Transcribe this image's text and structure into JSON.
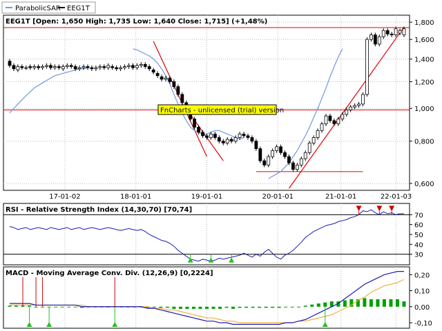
{
  "legend": {
    "items": [
      {
        "name": "ParabolicSAR",
        "color": "#6f98e0"
      },
      {
        "name": "EEG1T",
        "color": "#000000"
      }
    ]
  },
  "watermark": "FnCharts - unlicensed (trial) version",
  "colors": {
    "price_up": "#ffffff",
    "price_down": "#000000",
    "sar": "#6f98e0",
    "trend": "#e00000",
    "rsi": "#1a1ab4",
    "macd": "#1a1ab4",
    "signal": "#f0b040",
    "hist": "#00a000",
    "arrow_up": "#22c022",
    "arrow_down": "#cc0000"
  },
  "chart_data": [
    {
      "type": "candlestick",
      "title": "EEG1T [Open: 1,650  High: 1,735  Low: 1,640  Close: 1,715] (+1,48%)",
      "xticks": [
        "17-01-02",
        "18-01-01",
        "19-01-01",
        "20-01-01",
        "21-01-01",
        "22-01-03"
      ],
      "yticks": [
        "0,600",
        "0,800",
        "1,000",
        "1,200",
        "1,400",
        "1,600",
        "1,800"
      ],
      "ylim": [
        0.575,
        1.87
      ],
      "yscale": "log",
      "closes": [
        1.34,
        1.31,
        1.33,
        1.32,
        1.32,
        1.32,
        1.33,
        1.32,
        1.33,
        1.34,
        1.32,
        1.33,
        1.32,
        1.33,
        1.34,
        1.33,
        1.31,
        1.32,
        1.33,
        1.32,
        1.31,
        1.32,
        1.33,
        1.32,
        1.34,
        1.32,
        1.31,
        1.32,
        1.33,
        1.34,
        1.32,
        1.34,
        1.35,
        1.33,
        1.31,
        1.28,
        1.25,
        1.22,
        1.23,
        1.2,
        1.16,
        1.1,
        1.04,
        0.98,
        0.93,
        0.88,
        0.85,
        0.83,
        0.82,
        0.84,
        0.82,
        0.8,
        0.79,
        0.81,
        0.8,
        0.82,
        0.84,
        0.83,
        0.82,
        0.8,
        0.76,
        0.7,
        0.68,
        0.72,
        0.75,
        0.77,
        0.74,
        0.72,
        0.69,
        0.66,
        0.68,
        0.71,
        0.74,
        0.79,
        0.82,
        0.86,
        0.9,
        0.95,
        0.92,
        0.9,
        0.93,
        0.96,
        0.99,
        1.01,
        1.02,
        1.03,
        1.1,
        1.6,
        1.65,
        1.55,
        1.63,
        1.7,
        1.66,
        1.65,
        1.72,
        1.7,
        1.72
      ],
      "opens": [
        1.38,
        1.34,
        1.3,
        1.33,
        1.32,
        1.33,
        1.32,
        1.33,
        1.32,
        1.33,
        1.34,
        1.32,
        1.33,
        1.31,
        1.33,
        1.34,
        1.33,
        1.31,
        1.32,
        1.33,
        1.32,
        1.31,
        1.32,
        1.33,
        1.32,
        1.33,
        1.32,
        1.31,
        1.32,
        1.33,
        1.34,
        1.32,
        1.34,
        1.35,
        1.33,
        1.3,
        1.27,
        1.24,
        1.22,
        1.23,
        1.2,
        1.16,
        1.1,
        1.04,
        0.98,
        0.93,
        0.88,
        0.85,
        0.83,
        0.82,
        0.84,
        0.82,
        0.8,
        0.79,
        0.81,
        0.8,
        0.82,
        0.84,
        0.83,
        0.82,
        0.8,
        0.76,
        0.7,
        0.68,
        0.72,
        0.75,
        0.77,
        0.74,
        0.72,
        0.69,
        0.66,
        0.68,
        0.71,
        0.74,
        0.79,
        0.82,
        0.86,
        0.9,
        0.95,
        0.92,
        0.9,
        0.93,
        0.96,
        0.99,
        1.01,
        1.02,
        1.03,
        1.1,
        1.6,
        1.65,
        1.55,
        1.63,
        1.7,
        1.66,
        1.65,
        1.67,
        1.65
      ],
      "sar": [
        0.97,
        1.0,
        1.03,
        1.06,
        1.09,
        1.12,
        1.15,
        1.17,
        1.19,
        1.21,
        1.23,
        1.25,
        1.26,
        1.27,
        1.28,
        1.29,
        1.3,
        1.31,
        1.31,
        1.32,
        null,
        null,
        null,
        null,
        null,
        null,
        null,
        null,
        null,
        null,
        1.5,
        1.49,
        1.47,
        1.45,
        1.43,
        1.4,
        1.36,
        1.31,
        1.25,
        1.18,
        1.1,
        1.03,
        0.97,
        0.92,
        0.88,
        0.86,
        0.85,
        0.84,
        0.84,
        0.85,
        0.86,
        0.86,
        0.85,
        0.84,
        0.83,
        0.82,
        0.81,
        0.82,
        null,
        null,
        null,
        null,
        null,
        0.62,
        0.63,
        0.64,
        0.65,
        0.67,
        0.69,
        0.72,
        0.75,
        0.79,
        0.83,
        0.88,
        0.94,
        1.0,
        1.07,
        1.15,
        1.24,
        1.33,
        1.42,
        1.5
      ],
      "hlines": [
        1.735,
        0.99,
        0.65
      ],
      "trendlines": [
        {
          "from": [
            35,
            1.58
          ],
          "to": [
            48,
            0.72
          ]
        },
        {
          "from": [
            44,
            0.96
          ],
          "to": [
            52,
            0.7
          ]
        },
        {
          "from": [
            68,
            0.58
          ],
          "to": [
            96,
            1.74
          ]
        }
      ]
    },
    {
      "type": "line",
      "title": "RSI - Relative Strength Index (14,30,70) [70,74]",
      "yticks": [
        "30",
        "40",
        "50",
        "60",
        "70"
      ],
      "ylim": [
        20,
        80
      ],
      "levels": [
        30,
        70
      ],
      "values": [
        58,
        57,
        55,
        56,
        57,
        55,
        56,
        57,
        56,
        55,
        57,
        56,
        55,
        56,
        57,
        55,
        56,
        57,
        55,
        56,
        57,
        56,
        55,
        56,
        57,
        56,
        55,
        54,
        55,
        56,
        55,
        54,
        55,
        53,
        50,
        48,
        46,
        44,
        43,
        41,
        38,
        34,
        31,
        28,
        25,
        24,
        23,
        25,
        24,
        23,
        24,
        26,
        25,
        26,
        27,
        28,
        29,
        31,
        29,
        27,
        30,
        28,
        32,
        35,
        31,
        27,
        25,
        29,
        31,
        34,
        38,
        42,
        47,
        50,
        53,
        55,
        57,
        59,
        60,
        61,
        63,
        64,
        65,
        67,
        68,
        70,
        74,
        73,
        75,
        72,
        70,
        73,
        71,
        72,
        70,
        71,
        71
      ],
      "markers_up": [
        44,
        49,
        54
      ],
      "markers_down": [
        85,
        90,
        93
      ]
    },
    {
      "type": "line",
      "title": "MACD - Moving Average Conv. Div. (12,26,9) [0,2224]",
      "yticks": [
        "-0,10",
        "0,00",
        "0,10",
        "0,20"
      ],
      "ylim": [
        -0.13,
        0.24
      ],
      "macd": [
        0.02,
        0.02,
        0.02,
        0.02,
        0.01,
        0.01,
        0.01,
        0.01,
        0.01,
        0.01,
        0.01,
        0.0,
        0.0,
        0.0,
        0.0,
        0.0,
        0.0,
        0.0,
        0.0,
        0.0,
        0.0,
        -0.01,
        -0.01,
        -0.02,
        -0.03,
        -0.04,
        -0.05,
        -0.06,
        -0.07,
        -0.08,
        -0.09,
        -0.09,
        -0.1,
        -0.1,
        -0.11,
        -0.11,
        -0.11,
        -0.11,
        -0.11,
        -0.11,
        -0.11,
        -0.11,
        -0.1,
        -0.1,
        -0.09,
        -0.08,
        -0.06,
        -0.04,
        -0.02,
        0.0,
        0.02,
        0.05,
        0.08,
        0.11,
        0.14,
        0.16,
        0.18,
        0.2,
        0.21,
        0.22,
        0.22
      ],
      "signal": [
        0.01,
        0.01,
        0.01,
        0.01,
        0.01,
        0.01,
        0.01,
        0.01,
        0.01,
        0.01,
        0.01,
        0.01,
        0.0,
        0.0,
        0.0,
        0.0,
        0.0,
        0.0,
        0.0,
        0.0,
        0.0,
        0.0,
        -0.01,
        -0.01,
        -0.02,
        -0.02,
        -0.03,
        -0.04,
        -0.05,
        -0.06,
        -0.07,
        -0.07,
        -0.08,
        -0.09,
        -0.09,
        -0.1,
        -0.1,
        -0.1,
        -0.1,
        -0.1,
        -0.1,
        -0.1,
        -0.1,
        -0.1,
        -0.09,
        -0.09,
        -0.08,
        -0.07,
        -0.06,
        -0.05,
        -0.03,
        -0.01,
        0.01,
        0.04,
        0.06,
        0.09,
        0.11,
        0.13,
        0.14,
        0.15,
        0.17
      ],
      "hist_scale": 0.06,
      "markers_up": [
        3,
        6,
        16,
        48
      ],
      "markers_down": [
        2,
        4,
        5,
        16
      ]
    }
  ]
}
